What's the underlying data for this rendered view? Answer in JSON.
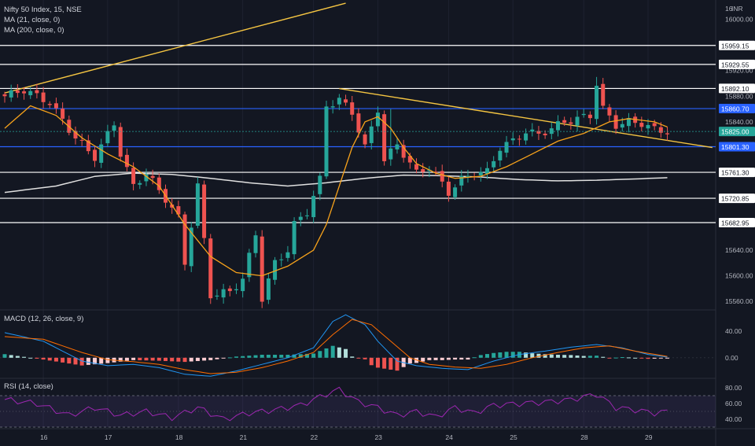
{
  "header": {
    "symbol_line": "Nifty 50 Index, 15, NSE",
    "ma21_label": "MA (21, close, 0)",
    "ma200_label": "MA (200, close, 0)",
    "currency": "INR"
  },
  "panels": {
    "macd_label": "MACD (12, 26, close, 9)",
    "rsi_label": "RSI (14, close)"
  },
  "colors": {
    "background": "#131722",
    "bull": "#26a69a",
    "bear": "#ef5350",
    "ma21": "#f7a21b",
    "ma200": "#e0e0e0",
    "trendline": "#f5c542",
    "white_level": "#ffffff",
    "blue_level": "#2962ff",
    "rsi_line": "#9c27b0",
    "macd_line": "#2196f3",
    "signal_line": "#ff6d00"
  },
  "chart_data": [
    {
      "type": "candlestick",
      "title": "Nifty 50 Index, 15, NSE",
      "x_ticks": [
        "16",
        "17",
        "18",
        "21",
        "22",
        "23",
        "24",
        "25",
        "28",
        "29"
      ],
      "y_ticks": [
        "16000.00",
        "15920.00",
        "15880.00",
        "15840.00",
        "15640.00",
        "15600.00",
        "15560.00"
      ],
      "ylim": [
        15548,
        16030
      ],
      "levels": [
        {
          "value": 15959.15,
          "label": "15959.15",
          "color": "white"
        },
        {
          "value": 15929.55,
          "label": "15929.55",
          "color": "white"
        },
        {
          "value": 15892.1,
          "label": "15892.10",
          "color": "white"
        },
        {
          "value": 15860.7,
          "label": "15860.70",
          "color": "blue"
        },
        {
          "value": 15801.3,
          "label": "15801.30",
          "color": "blue"
        },
        {
          "value": 15761.3,
          "label": "15761.30",
          "color": "white"
        },
        {
          "value": 15720.85,
          "label": "15720.85",
          "color": "white"
        },
        {
          "value": 15682.95,
          "label": "15682.95",
          "color": "white"
        }
      ],
      "last_price": {
        "value": 15825.0,
        "label": "15825.00"
      },
      "anchors": [
        [
          0,
          15880
        ],
        [
          3,
          15890
        ],
        [
          7,
          15870
        ],
        [
          11,
          15815
        ],
        [
          14,
          15785
        ],
        [
          17,
          15838
        ],
        [
          18,
          15790
        ],
        [
          20,
          15740
        ],
        [
          22,
          15760
        ],
        [
          25,
          15720
        ],
        [
          27,
          15690
        ],
        [
          28,
          15620
        ],
        [
          30,
          15740
        ],
        [
          32,
          15570
        ],
        [
          35,
          15575
        ],
        [
          37,
          15595
        ],
        [
          39,
          15665
        ],
        [
          40,
          15565
        ],
        [
          42,
          15620
        ],
        [
          44,
          15640
        ],
        [
          45,
          15680
        ],
        [
          47,
          15700
        ],
        [
          49,
          15750
        ],
        [
          50,
          15865
        ],
        [
          52,
          15875
        ],
        [
          54,
          15855
        ],
        [
          56,
          15800
        ],
        [
          58,
          15860
        ],
        [
          59,
          15780
        ],
        [
          61,
          15805
        ],
        [
          64,
          15760
        ],
        [
          66,
          15770
        ],
        [
          69,
          15730
        ],
        [
          71,
          15750
        ],
        [
          73,
          15760
        ],
        [
          75,
          15762
        ],
        [
          77,
          15800
        ],
        [
          79,
          15810
        ],
        [
          81,
          15825
        ],
        [
          83,
          15820
        ],
        [
          85,
          15830
        ],
        [
          87,
          15840
        ],
        [
          89,
          15845
        ],
        [
          91,
          15850
        ],
        [
          92,
          15900
        ],
        [
          93,
          15860
        ],
        [
          95,
          15835
        ],
        [
          97,
          15840
        ],
        [
          99,
          15838
        ],
        [
          101,
          15828
        ],
        [
          103,
          15825
        ]
      ],
      "spikes": [
        [
          92,
          15910
        ],
        [
          60,
          15860
        ],
        [
          66,
          15755
        ]
      ],
      "ma21_anchors": [
        [
          0,
          15830
        ],
        [
          4,
          15865
        ],
        [
          8,
          15850
        ],
        [
          12,
          15815
        ],
        [
          16,
          15790
        ],
        [
          20,
          15770
        ],
        [
          24,
          15740
        ],
        [
          28,
          15680
        ],
        [
          32,
          15630
        ],
        [
          36,
          15605
        ],
        [
          40,
          15600
        ],
        [
          44,
          15615
        ],
        [
          48,
          15640
        ],
        [
          50,
          15680
        ],
        [
          52,
          15740
        ],
        [
          54,
          15800
        ],
        [
          56,
          15840
        ],
        [
          58,
          15848
        ],
        [
          60,
          15830
        ],
        [
          62,
          15800
        ],
        [
          64,
          15775
        ],
        [
          67,
          15760
        ],
        [
          70,
          15752
        ],
        [
          74,
          15755
        ],
        [
          78,
          15770
        ],
        [
          82,
          15790
        ],
        [
          86,
          15810
        ],
        [
          90,
          15822
        ],
        [
          94,
          15840
        ],
        [
          97,
          15845
        ],
        [
          101,
          15840
        ],
        [
          103,
          15832
        ]
      ],
      "ma200_anchors": [
        [
          0,
          15730
        ],
        [
          8,
          15740
        ],
        [
          14,
          15755
        ],
        [
          20,
          15760
        ],
        [
          26,
          15758
        ],
        [
          32,
          15752
        ],
        [
          38,
          15745
        ],
        [
          44,
          15740
        ],
        [
          50,
          15745
        ],
        [
          56,
          15752
        ],
        [
          62,
          15757
        ],
        [
          68,
          15756
        ],
        [
          74,
          15754
        ],
        [
          80,
          15750
        ],
        [
          86,
          15748
        ],
        [
          92,
          15749
        ],
        [
          98,
          15751
        ],
        [
          103,
          15753
        ]
      ],
      "trendlines": [
        {
          "from": [
            0,
            15885
          ],
          "to": [
            53,
            16025
          ]
        },
        {
          "from": [
            52,
            15892
          ],
          "to": [
            110,
            15800
          ]
        }
      ]
    },
    {
      "type": "bar",
      "title": "MACD (12, 26, close, 9)",
      "y_ticks": [
        "40.00",
        "0.00"
      ],
      "ylim": [
        -30,
        70
      ],
      "macd_anchors": [
        [
          0,
          38
        ],
        [
          6,
          25
        ],
        [
          12,
          -5
        ],
        [
          16,
          -12
        ],
        [
          20,
          -10
        ],
        [
          24,
          -15
        ],
        [
          28,
          -25
        ],
        [
          32,
          -28
        ],
        [
          36,
          -20
        ],
        [
          40,
          -10
        ],
        [
          44,
          0
        ],
        [
          48,
          15
        ],
        [
          51,
          55
        ],
        [
          53,
          65
        ],
        [
          56,
          50
        ],
        [
          58,
          25
        ],
        [
          61,
          -5
        ],
        [
          64,
          -12
        ],
        [
          68,
          -16
        ],
        [
          72,
          -18
        ],
        [
          76,
          -5
        ],
        [
          80,
          5
        ],
        [
          84,
          10
        ],
        [
          88,
          16
        ],
        [
          92,
          20
        ],
        [
          96,
          15
        ],
        [
          100,
          5
        ],
        [
          103,
          1
        ]
      ],
      "signal_anchors": [
        [
          0,
          32
        ],
        [
          6,
          28
        ],
        [
          12,
          8
        ],
        [
          16,
          -3
        ],
        [
          20,
          -6
        ],
        [
          24,
          -10
        ],
        [
          28,
          -18
        ],
        [
          32,
          -24
        ],
        [
          36,
          -22
        ],
        [
          40,
          -15
        ],
        [
          44,
          -5
        ],
        [
          48,
          8
        ],
        [
          51,
          35
        ],
        [
          54,
          58
        ],
        [
          57,
          50
        ],
        [
          60,
          25
        ],
        [
          63,
          0
        ],
        [
          66,
          -10
        ],
        [
          70,
          -14
        ],
        [
          74,
          -16
        ],
        [
          78,
          -10
        ],
        [
          82,
          0
        ],
        [
          86,
          8
        ],
        [
          90,
          15
        ],
        [
          94,
          18
        ],
        [
          98,
          10
        ],
        [
          103,
          2
        ]
      ]
    },
    {
      "type": "line",
      "title": "RSI (14, close)",
      "y_ticks": [
        "80.00",
        "60.00",
        "40.00"
      ],
      "ylim": [
        30,
        90
      ],
      "band": [
        30,
        70
      ],
      "rsi_anchors": [
        [
          0,
          65
        ],
        [
          5,
          60
        ],
        [
          10,
          45
        ],
        [
          14,
          55
        ],
        [
          18,
          45
        ],
        [
          22,
          50
        ],
        [
          26,
          42
        ],
        [
          30,
          55
        ],
        [
          34,
          40
        ],
        [
          38,
          48
        ],
        [
          42,
          52
        ],
        [
          46,
          58
        ],
        [
          50,
          72
        ],
        [
          52,
          78
        ],
        [
          55,
          62
        ],
        [
          58,
          55
        ],
        [
          61,
          45
        ],
        [
          64,
          50
        ],
        [
          67,
          43
        ],
        [
          70,
          55
        ],
        [
          73,
          48
        ],
        [
          76,
          58
        ],
        [
          80,
          60
        ],
        [
          84,
          62
        ],
        [
          88,
          65
        ],
        [
          92,
          72
        ],
        [
          95,
          55
        ],
        [
          98,
          52
        ],
        [
          101,
          48
        ],
        [
          103,
          50
        ]
      ]
    }
  ]
}
